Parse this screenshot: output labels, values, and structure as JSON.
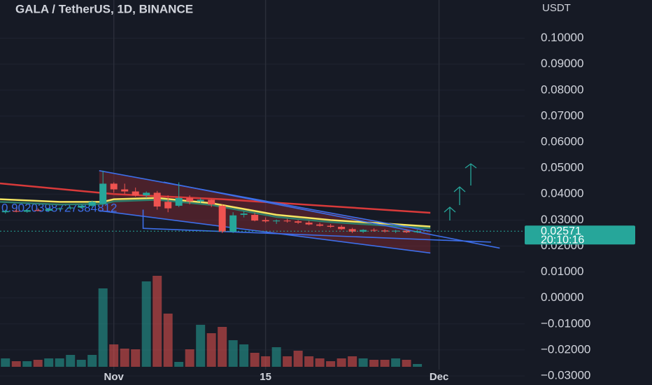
{
  "chart_data": {
    "type": "candlestick",
    "title": "GALA / TetherUS, 1D, BINANCE",
    "y_axis_label": "USDT",
    "annotation": "0.9020398727384812",
    "last_price": {
      "value": 0.02571,
      "label": "0.02571"
    },
    "countdown": "20:10:16",
    "up_color": "#26a69a",
    "down_color": "#ef5350",
    "grid": true,
    "xlim": [
      -0.5,
      47.9
    ],
    "xticks": [
      {
        "value": 10,
        "label": "Nov"
      },
      {
        "value": 24,
        "label": "15"
      },
      {
        "value": 40,
        "label": "Dec"
      }
    ],
    "ylim": [
      -0.0335,
      0.1147
    ],
    "yticks": [
      {
        "value": 0.1,
        "label": "0.10000"
      },
      {
        "value": 0.09,
        "label": "0.09000"
      },
      {
        "value": 0.08,
        "label": "0.08000"
      },
      {
        "value": 0.07,
        "label": "0.07000"
      },
      {
        "value": 0.06,
        "label": "0.06000"
      },
      {
        "value": 0.05,
        "label": "0.05000"
      },
      {
        "value": 0.04,
        "label": "0.04000"
      },
      {
        "value": 0.03,
        "label": "0.03000"
      },
      {
        "value": 0.02,
        "label": "0.02000"
      },
      {
        "value": 0.01,
        "label": "0.01000"
      },
      {
        "value": 0,
        "label": "0.00000"
      },
      {
        "value": -0.01,
        "label": "−0.01000"
      },
      {
        "value": -0.02,
        "label": "−0.02000"
      },
      {
        "value": -0.03,
        "label": "−0.03000"
      }
    ],
    "open": [
      0.033,
      0.0335,
      0.0332,
      0.0338,
      0.0336,
      0.0343,
      0.0345,
      0.0348,
      0.0355,
      0.0362,
      0.044,
      0.0418,
      0.041,
      0.0395,
      0.0405,
      0.037,
      0.0355,
      0.0385,
      0.0372,
      0.0378,
      0.0355,
      0.0255,
      0.032,
      0.032,
      0.03,
      0.0295,
      0.0298,
      0.0295,
      0.029,
      0.0283,
      0.0278,
      0.0274,
      0.0265,
      0.0255,
      0.0262,
      0.026,
      0.0256,
      0.0259,
      0.0253
    ],
    "high": [
      0.034,
      0.0342,
      0.034,
      0.0345,
      0.0345,
      0.0348,
      0.0352,
      0.036,
      0.0375,
      0.049,
      0.0445,
      0.044,
      0.0425,
      0.041,
      0.0412,
      0.0395,
      0.0445,
      0.0395,
      0.0385,
      0.038,
      0.036,
      0.033,
      0.0335,
      0.0328,
      0.031,
      0.0302,
      0.0305,
      0.03,
      0.0297,
      0.029,
      0.0285,
      0.028,
      0.027,
      0.0265,
      0.0268,
      0.0265,
      0.0262,
      0.0264,
      0.0262
    ],
    "low": [
      0.0325,
      0.033,
      0.0328,
      0.0333,
      0.0332,
      0.0338,
      0.034,
      0.0344,
      0.035,
      0.036,
      0.0405,
      0.04,
      0.039,
      0.0385,
      0.034,
      0.033,
      0.035,
      0.036,
      0.0365,
      0.035,
      0.025,
      0.025,
      0.031,
      0.0295,
      0.029,
      0.0285,
      0.029,
      0.0285,
      0.028,
      0.0275,
      0.027,
      0.0262,
      0.025,
      0.025,
      0.0255,
      0.0252,
      0.025,
      0.025,
      0.025
    ],
    "close": [
      0.0335,
      0.0332,
      0.0338,
      0.0336,
      0.0343,
      0.0345,
      0.0348,
      0.0355,
      0.037,
      0.044,
      0.0418,
      0.041,
      0.0395,
      0.0405,
      0.0352,
      0.0345,
      0.0385,
      0.0372,
      0.0378,
      0.036,
      0.0255,
      0.0318,
      0.0325,
      0.0298,
      0.0295,
      0.0298,
      0.0295,
      0.029,
      0.0283,
      0.0278,
      0.0274,
      0.0265,
      0.0255,
      0.0262,
      0.026,
      0.0256,
      0.0259,
      0.0253,
      0.0257
    ],
    "volume": [
      12,
      8,
      8,
      10,
      12,
      12,
      17,
      10,
      17,
      112,
      32,
      26,
      25,
      122,
      130,
      76,
      7,
      25,
      60,
      48,
      57,
      38,
      32,
      20,
      15,
      28,
      15,
      23,
      15,
      12,
      8,
      12,
      15,
      12,
      10,
      10,
      12,
      10,
      4
    ],
    "overlays": [
      {
        "color": "#d93a3a",
        "x": [
          -0.5,
          10,
          20,
          39.2
        ],
        "values": [
          0.0441,
          0.04,
          0.038,
          0.0328
        ]
      },
      {
        "color": "#2e7d6b",
        "x": [
          -0.5,
          5,
          9,
          10,
          14,
          19,
          25,
          30,
          39.2
        ],
        "values": [
          0.037,
          0.036,
          0.0362,
          0.0372,
          0.0378,
          0.0358,
          0.0312,
          0.0292,
          0.0268
        ]
      },
      {
        "color": "#f5e663",
        "x": [
          -0.5,
          5,
          9,
          10,
          14,
          19,
          25,
          30,
          39.2
        ],
        "values": [
          0.038,
          0.037,
          0.037,
          0.038,
          0.0385,
          0.0365,
          0.032,
          0.03,
          0.0275
        ]
      },
      {
        "color": "#3d6ee8",
        "x": [
          8.65,
          39.2
        ],
        "values": [
          0.049,
          0.0257
        ]
      },
      {
        "color": "#3d6ee8",
        "x": [
          14.6,
          45.6
        ],
        "values": [
          0.0446,
          0.0192
        ]
      },
      {
        "color": "#3d6ee8",
        "x": [
          12.7,
          12.7,
          44.8
        ],
        "values": [
          0.034,
          0.0268,
          0.0215
        ]
      },
      {
        "color": "#3d6ee8",
        "x": [
          8.65,
          39.2
        ],
        "values": [
          0.0336,
          0.0173
        ]
      }
    ]
  }
}
